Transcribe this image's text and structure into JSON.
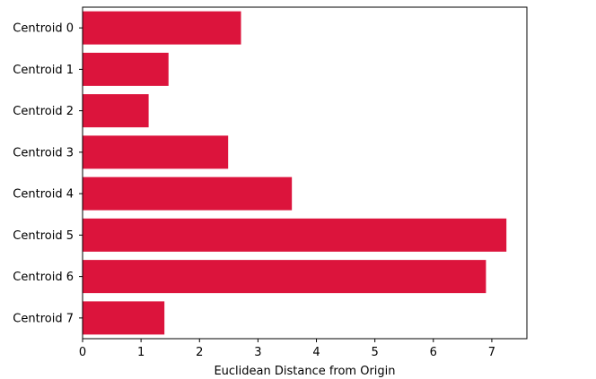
{
  "chart_data": {
    "type": "bar",
    "orientation": "horizontal",
    "categories": [
      "Centroid 0",
      "Centroid 1",
      "Centroid 2",
      "Centroid 3",
      "Centroid 4",
      "Centroid 5",
      "Centroid 6",
      "Centroid 7"
    ],
    "values": [
      2.71,
      1.47,
      1.13,
      2.49,
      3.58,
      7.25,
      6.9,
      1.4
    ],
    "xlabel": "Euclidean Distance from Origin",
    "ylabel": "",
    "xlim": [
      0,
      7.6
    ],
    "xticks": [
      0,
      1,
      2,
      3,
      4,
      5,
      6,
      7
    ],
    "bar_color": "#dc143c",
    "grid": false,
    "legend": false
  }
}
